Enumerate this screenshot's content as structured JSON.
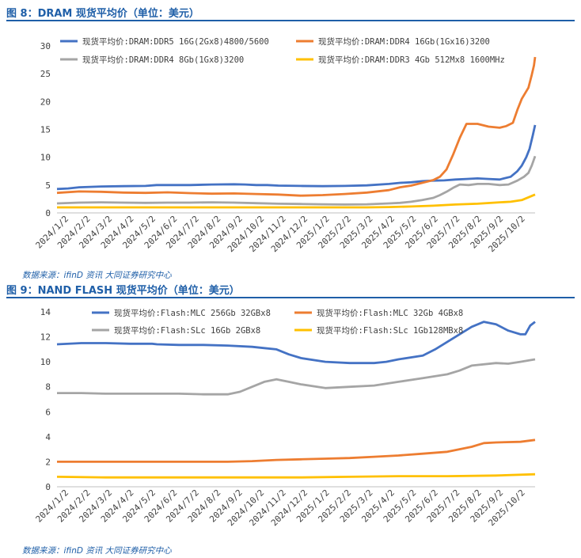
{
  "colors": {
    "blue": "#4472c4",
    "orange": "#ed7d31",
    "gray": "#a5a5a5",
    "yellow": "#ffc000",
    "title": "#1f5fa8"
  },
  "source_text": "数据来源：ifinD 资讯 大同证券研究中心",
  "chart_data": [
    {
      "type": "line",
      "figure_title": "图 8：DRAM 现货平均价（单位：美元）",
      "ylim": [
        0,
        30
      ],
      "yticks": [
        0,
        5,
        10,
        15,
        20,
        25,
        30
      ],
      "xlim": [
        0,
        21.6
      ],
      "categories": [
        "2024/1/2",
        "2024/2/2",
        "2024/3/2",
        "2024/4/2",
        "2024/5/2",
        "2024/6/2",
        "2024/7/2",
        "2024/8/2",
        "2024/9/2",
        "2024/10/2",
        "2024/11/2",
        "2024/12/2",
        "2025/1/2",
        "2025/2/2",
        "2025/3/2",
        "2025/4/2",
        "2025/5/2",
        "2025/6/2",
        "2025/7/2",
        "2025/8/2",
        "2025/9/2",
        "2025/10/2"
      ],
      "series": [
        {
          "name": "现货平均价:DRAM:DDR5 16G(2Gx8)4800/5600",
          "color": "#4472c4",
          "points": [
            [
              0,
              4.3
            ],
            [
              0.5,
              4.4
            ],
            [
              1,
              4.6
            ],
            [
              2,
              4.75
            ],
            [
              3,
              4.8
            ],
            [
              4,
              4.85
            ],
            [
              4.5,
              5.0
            ],
            [
              5,
              5.0
            ],
            [
              6,
              5.0
            ],
            [
              7,
              5.1
            ],
            [
              8,
              5.15
            ],
            [
              8.5,
              5.1
            ],
            [
              9,
              5.0
            ],
            [
              9.5,
              5.0
            ],
            [
              10,
              4.9
            ],
            [
              11,
              4.85
            ],
            [
              12,
              4.8
            ],
            [
              13,
              4.85
            ],
            [
              14,
              4.95
            ],
            [
              15,
              5.2
            ],
            [
              15.5,
              5.4
            ],
            [
              16,
              5.5
            ],
            [
              16.5,
              5.7
            ],
            [
              17,
              5.8
            ],
            [
              17.5,
              5.85
            ],
            [
              18,
              6.0
            ],
            [
              18.5,
              6.1
            ],
            [
              19,
              6.2
            ],
            [
              19.5,
              6.1
            ],
            [
              20,
              6.0
            ],
            [
              20.5,
              6.5
            ],
            [
              20.8,
              7.5
            ],
            [
              21.0,
              8.5
            ],
            [
              21.2,
              10.0
            ],
            [
              21.35,
              11.5
            ],
            [
              21.5,
              14.0
            ],
            [
              21.6,
              15.8
            ]
          ]
        },
        {
          "name": "现货平均价:DRAM:DDR4 16Gb(1Gx16)3200",
          "color": "#ed7d31",
          "points": [
            [
              0,
              3.6
            ],
            [
              1,
              3.85
            ],
            [
              2,
              3.8
            ],
            [
              3,
              3.65
            ],
            [
              4,
              3.6
            ],
            [
              5,
              3.7
            ],
            [
              6,
              3.55
            ],
            [
              7,
              3.45
            ],
            [
              8,
              3.5
            ],
            [
              9,
              3.4
            ],
            [
              10,
              3.3
            ],
            [
              11,
              3.1
            ],
            [
              12,
              3.2
            ],
            [
              13,
              3.4
            ],
            [
              14,
              3.65
            ],
            [
              15,
              4.1
            ],
            [
              15.5,
              4.6
            ],
            [
              16,
              4.9
            ],
            [
              16.5,
              5.4
            ],
            [
              17,
              5.9
            ],
            [
              17.3,
              6.5
            ],
            [
              17.6,
              7.8
            ],
            [
              17.9,
              10.5
            ],
            [
              18.2,
              13.5
            ],
            [
              18.5,
              16.0
            ],
            [
              19,
              16.0
            ],
            [
              19.5,
              15.5
            ],
            [
              20,
              15.3
            ],
            [
              20.3,
              15.6
            ],
            [
              20.6,
              16.2
            ],
            [
              20.8,
              18.5
            ],
            [
              21.0,
              20.5
            ],
            [
              21.15,
              21.5
            ],
            [
              21.3,
              22.5
            ],
            [
              21.45,
              24.8
            ],
            [
              21.55,
              26.5
            ],
            [
              21.6,
              28.0
            ]
          ]
        },
        {
          "name": "现货平均价:DRAM:DDR4 8Gb(1Gx8)3200",
          "color": "#a5a5a5",
          "points": [
            [
              0,
              1.7
            ],
            [
              1,
              1.85
            ],
            [
              2,
              1.9
            ],
            [
              3,
              1.85
            ],
            [
              4,
              1.8
            ],
            [
              5,
              1.85
            ],
            [
              6,
              1.85
            ],
            [
              7,
              1.9
            ],
            [
              8,
              1.85
            ],
            [
              9,
              1.75
            ],
            [
              10,
              1.65
            ],
            [
              11,
              1.6
            ],
            [
              12,
              1.55
            ],
            [
              13,
              1.5
            ],
            [
              14,
              1.55
            ],
            [
              15,
              1.7
            ],
            [
              15.5,
              1.8
            ],
            [
              16,
              2.0
            ],
            [
              16.5,
              2.3
            ],
            [
              17,
              2.7
            ],
            [
              17.3,
              3.2
            ],
            [
              17.6,
              3.8
            ],
            [
              17.9,
              4.5
            ],
            [
              18.2,
              5.1
            ],
            [
              18.6,
              5.0
            ],
            [
              19,
              5.2
            ],
            [
              19.5,
              5.2
            ],
            [
              20,
              5.0
            ],
            [
              20.4,
              5.1
            ],
            [
              20.8,
              5.8
            ],
            [
              21.1,
              6.5
            ],
            [
              21.3,
              7.2
            ],
            [
              21.45,
              8.5
            ],
            [
              21.6,
              10.2
            ]
          ]
        },
        {
          "name": "现货平均价:DRAM:DDR3 4Gb 512Mx8 1600MHz",
          "color": "#ffc000",
          "points": [
            [
              0,
              1.0
            ],
            [
              2,
              1.0
            ],
            [
              4,
              1.0
            ],
            [
              6,
              1.0
            ],
            [
              8,
              1.0
            ],
            [
              10,
              1.0
            ],
            [
              12,
              1.0
            ],
            [
              14,
              1.0
            ],
            [
              15,
              1.05
            ],
            [
              16,
              1.15
            ],
            [
              17,
              1.3
            ],
            [
              18,
              1.5
            ],
            [
              19,
              1.65
            ],
            [
              20,
              1.9
            ],
            [
              20.5,
              2.0
            ],
            [
              21,
              2.3
            ],
            [
              21.3,
              2.8
            ],
            [
              21.6,
              3.3
            ]
          ]
        }
      ]
    },
    {
      "type": "line",
      "figure_title": "图 9：NAND FLASH 现货平均价（单位：美元）",
      "ylim": [
        0,
        14
      ],
      "yticks": [
        0,
        2,
        4,
        6,
        8,
        10,
        12,
        14
      ],
      "xlim": [
        0,
        19.6
      ],
      "categories": [
        "2024/1/2",
        "2024/2/2",
        "2024/3/2",
        "2024/4/2",
        "2024/5/2",
        "2024/6/2",
        "2024/7/2",
        "2024/8/2",
        "2024/9/2",
        "2024/10/2",
        "2024/11/2",
        "2024/12/2",
        "2025/1/2",
        "2025/2/2",
        "2025/3/2",
        "2025/4/2",
        "2025/5/2",
        "2025/6/2",
        "2025/7/2",
        "2025/8/2",
        "2025/9/2",
        "2025/10/2"
      ],
      "series": [
        {
          "name": "现货平均价:Flash:MLC 256Gb 32GBx8",
          "color": "#4472c4",
          "points": [
            [
              0,
              11.4
            ],
            [
              1,
              11.5
            ],
            [
              2,
              11.5
            ],
            [
              3,
              11.45
            ],
            [
              3.9,
              11.45
            ],
            [
              4.1,
              11.4
            ],
            [
              5,
              11.35
            ],
            [
              6,
              11.35
            ],
            [
              7,
              11.3
            ],
            [
              8,
              11.2
            ],
            [
              8.5,
              11.1
            ],
            [
              9,
              11.0
            ],
            [
              9.5,
              10.6
            ],
            [
              10,
              10.3
            ],
            [
              11,
              10.0
            ],
            [
              12,
              9.9
            ],
            [
              13,
              9.9
            ],
            [
              13.5,
              10.0
            ],
            [
              14,
              10.2
            ],
            [
              15,
              10.5
            ],
            [
              15.5,
              11.0
            ],
            [
              16,
              11.6
            ],
            [
              16.5,
              12.2
            ],
            [
              17,
              12.8
            ],
            [
              17.5,
              13.2
            ],
            [
              18,
              13.0
            ],
            [
              18.5,
              12.5
            ],
            [
              19,
              12.2
            ],
            [
              19.2,
              12.2
            ],
            [
              19.4,
              12.9
            ],
            [
              19.6,
              13.2
            ]
          ]
        },
        {
          "name": "现货平均价:Flash:MLC 32Gb 4GBx8",
          "color": "#ed7d31",
          "points": [
            [
              0,
              2.0
            ],
            [
              2,
              2.0
            ],
            [
              4,
              2.0
            ],
            [
              6,
              2.0
            ],
            [
              7,
              2.0
            ],
            [
              8,
              2.05
            ],
            [
              9,
              2.15
            ],
            [
              10,
              2.2
            ],
            [
              11,
              2.25
            ],
            [
              12,
              2.3
            ],
            [
              13,
              2.4
            ],
            [
              14,
              2.5
            ],
            [
              15,
              2.65
            ],
            [
              16,
              2.8
            ],
            [
              16.5,
              3.0
            ],
            [
              17,
              3.2
            ],
            [
              17.5,
              3.5
            ],
            [
              18,
              3.55
            ],
            [
              19,
              3.6
            ],
            [
              19.6,
              3.75
            ]
          ]
        },
        {
          "name": "现货平均价:Flash:SLc 16Gb 2GBx8",
          "color": "#a5a5a5",
          "points": [
            [
              0,
              7.5
            ],
            [
              1,
              7.5
            ],
            [
              2,
              7.45
            ],
            [
              3,
              7.45
            ],
            [
              3.9,
              7.45
            ],
            [
              4.1,
              7.45
            ],
            [
              5,
              7.45
            ],
            [
              6,
              7.4
            ],
            [
              7,
              7.4
            ],
            [
              7.5,
              7.6
            ],
            [
              8,
              8.0
            ],
            [
              8.5,
              8.4
            ],
            [
              9,
              8.6
            ],
            [
              9.5,
              8.4
            ],
            [
              10,
              8.2
            ],
            [
              11,
              7.9
            ],
            [
              12,
              8.0
            ],
            [
              13,
              8.1
            ],
            [
              14,
              8.4
            ],
            [
              15,
              8.7
            ],
            [
              16,
              9.0
            ],
            [
              16.5,
              9.3
            ],
            [
              17,
              9.7
            ],
            [
              18,
              9.9
            ],
            [
              18.5,
              9.85
            ],
            [
              19,
              10.0
            ],
            [
              19.6,
              10.2
            ]
          ]
        },
        {
          "name": "现货平均价:Flash:SLc 1Gb128MBx8",
          "color": "#ffc000",
          "points": [
            [
              0,
              0.8
            ],
            [
              2,
              0.75
            ],
            [
              4,
              0.75
            ],
            [
              6,
              0.75
            ],
            [
              8,
              0.75
            ],
            [
              10,
              0.75
            ],
            [
              12,
              0.8
            ],
            [
              14,
              0.85
            ],
            [
              16,
              0.85
            ],
            [
              18,
              0.9
            ],
            [
              19.6,
              1.0
            ]
          ]
        }
      ]
    }
  ]
}
